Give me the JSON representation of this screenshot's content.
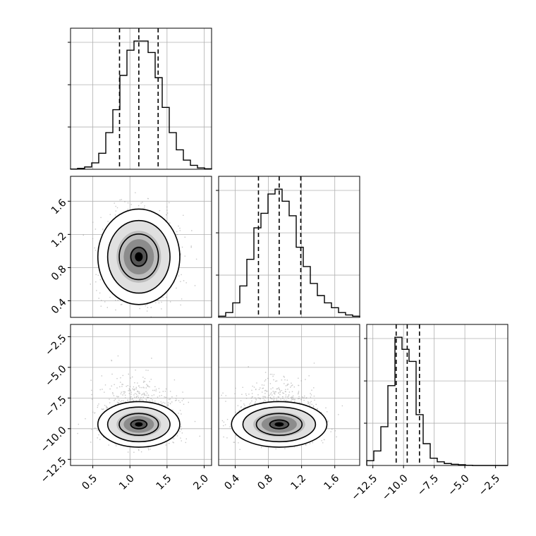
{
  "chart_data": {
    "type": "corner",
    "grid": true,
    "style": {
      "hist_color": "#000000",
      "quantile_color": "#000000",
      "point_color": "#999999",
      "contour_color": "#000000",
      "density_colors": [
        "#ffffff",
        "#e0e0e0",
        "#bdbdbd",
        "#8c8c8c",
        "#555555",
        "#000000"
      ]
    },
    "parameters": [
      {
        "range": [
          0.2,
          2.1
        ],
        "ticks": [
          0.5,
          1.0,
          1.5,
          2.0
        ],
        "tick_labels": [
          "0.5",
          "1.0",
          "1.5",
          "2.0"
        ],
        "quantiles": [
          0.86,
          1.12,
          1.38
        ],
        "center": 1.12,
        "sd": 0.24,
        "hist": {
          "edges": [
            0.2,
            0.295,
            0.39,
            0.485,
            0.58,
            0.675,
            0.77,
            0.865,
            0.96,
            1.055,
            1.15,
            1.245,
            1.34,
            1.435,
            1.53,
            1.625,
            1.72,
            1.815,
            1.91,
            2.005,
            2.1
          ],
          "counts": [
            1,
            4,
            10,
            28,
            70,
            160,
            260,
            410,
            520,
            560,
            560,
            510,
            400,
            270,
            160,
            85,
            40,
            17,
            6,
            2
          ]
        }
      },
      {
        "range": [
          0.2,
          1.9
        ],
        "ticks": [
          0.4,
          0.8,
          1.2,
          1.6
        ],
        "tick_labels": [
          "0.4",
          "0.8",
          "1.2",
          "1.6"
        ],
        "quantiles": [
          0.68,
          0.93,
          1.19
        ],
        "center": 0.93,
        "sd": 0.25,
        "hist": {
          "edges": [
            0.2,
            0.285,
            0.37,
            0.455,
            0.54,
            0.625,
            0.71,
            0.795,
            0.88,
            0.965,
            1.05,
            1.135,
            1.22,
            1.305,
            1.39,
            1.475,
            1.56,
            1.645,
            1.73,
            1.815,
            1.9
          ],
          "counts": [
            5,
            20,
            60,
            130,
            240,
            370,
            430,
            510,
            530,
            480,
            420,
            290,
            210,
            140,
            90,
            60,
            40,
            20,
            10,
            5
          ]
        }
      },
      {
        "range": [
          -13.0,
          -1.5
        ],
        "ticks": [
          -12.5,
          -10.0,
          -7.5,
          -5.0,
          -2.5
        ],
        "tick_labels": [
          "−12.5",
          "−10.0",
          "−7.5",
          "−5.0",
          "−2.5"
        ],
        "quantiles": [
          -10.6,
          -9.7,
          -8.7
        ],
        "center": -9.65,
        "sd": 0.85,
        "hist": {
          "edges": [
            -13.0,
            -12.425,
            -11.85,
            -11.275,
            -10.7,
            -10.125,
            -9.55,
            -8.975,
            -8.4,
            -7.825,
            -7.25,
            -6.675,
            -6.1,
            -5.525,
            -4.95,
            -4.375,
            -3.8,
            -3.225,
            -2.65,
            -2.075,
            -1.5
          ],
          "counts": [
            20,
            60,
            160,
            330,
            530,
            480,
            430,
            210,
            90,
            30,
            15,
            8,
            5,
            3,
            1,
            0,
            0,
            0,
            0,
            0
          ]
        }
      }
    ]
  }
}
